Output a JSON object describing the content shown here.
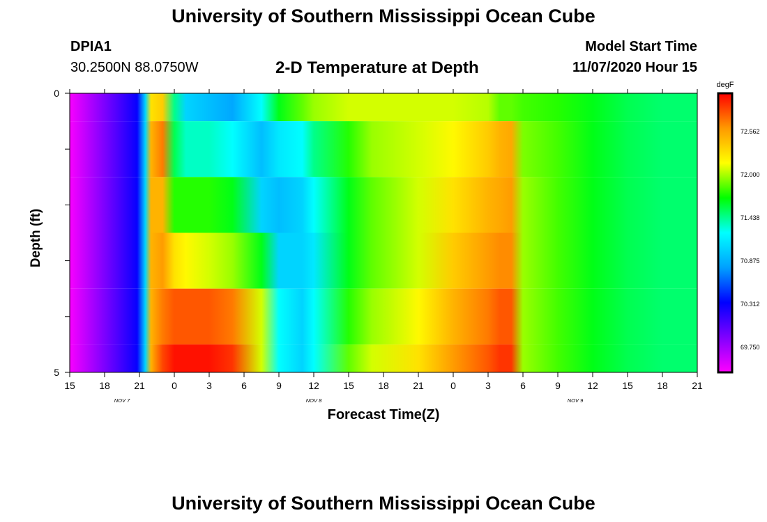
{
  "header": {
    "title_top": "University of Southern Mississippi Ocean Cube",
    "station_id": "DPIA1",
    "station_location": "30.2500N 88.0750W",
    "plot_title": "2-D Temperature at Depth",
    "start_label": "Model Start Time",
    "start_value": "11/07/2020 Hour 15"
  },
  "footer": {
    "title_bottom": "University of Southern Mississippi Ocean Cube"
  },
  "chart_data": {
    "type": "heatmap",
    "xlabel": "Forecast Time(Z)",
    "ylabel": "Depth (ft)",
    "ylim": [
      0,
      5
    ],
    "y_tick_labels": [
      "0",
      "5"
    ],
    "y_levels": [
      0,
      1,
      2,
      3,
      4,
      5
    ],
    "x_range_hours": [
      0,
      54
    ],
    "x_tick_labels": [
      "15",
      "18",
      "21",
      "0",
      "3",
      "6",
      "9",
      "12",
      "15",
      "18",
      "21",
      "0",
      "3",
      "6",
      "9",
      "12",
      "15",
      "18",
      "21"
    ],
    "x_date_labels": [
      {
        "text": "NOV  7",
        "hour": 4.5
      },
      {
        "text": "NOV  8",
        "hour": 21
      },
      {
        "text": "NOV  9",
        "hour": 43.5
      }
    ],
    "colorbar": {
      "unit": "degF",
      "min": 69.45,
      "max": 72.95,
      "labels": [
        "72.562",
        "72.000",
        "71.438",
        "70.875",
        "70.312",
        "69.750"
      ],
      "colors": [
        "#ff00ff",
        "#8000ff",
        "#0000ff",
        "#00a0ff",
        "#00ffff",
        "#00ff00",
        "#ffff00",
        "#ff9900",
        "#ff0000"
      ]
    },
    "hours": [
      0,
      3,
      5.8,
      6.5,
      7,
      8,
      9,
      10,
      12,
      14,
      16.5,
      18,
      20,
      21,
      24,
      26,
      30,
      33,
      36,
      37,
      38,
      39,
      42,
      45,
      48,
      51,
      54
    ],
    "rows": [
      {
        "depth_range": [
          0,
          1
        ],
        "values": [
          69.47,
          69.9,
          70.3,
          71.0,
          72.2,
          72.3,
          71.4,
          71.0,
          70.9,
          70.8,
          71.2,
          71.6,
          71.8,
          71.9,
          72.0,
          72.0,
          72.0,
          72.0,
          71.95,
          71.8,
          71.8,
          71.75,
          71.7,
          71.6,
          71.5,
          71.45,
          71.45
        ]
      },
      {
        "depth_range": [
          1,
          2
        ],
        "values": [
          69.47,
          69.9,
          70.3,
          71.0,
          72.4,
          72.6,
          71.5,
          71.3,
          71.3,
          71.2,
          70.9,
          71.1,
          71.2,
          71.4,
          71.7,
          71.9,
          72.0,
          72.1,
          72.3,
          72.4,
          72.45,
          71.85,
          71.75,
          71.6,
          71.5,
          71.45,
          71.45
        ]
      },
      {
        "depth_range": [
          2,
          3
        ],
        "values": [
          69.47,
          69.9,
          70.3,
          71.0,
          72.4,
          72.4,
          71.7,
          71.7,
          71.7,
          71.6,
          71.0,
          70.9,
          71.0,
          71.2,
          71.6,
          71.8,
          72.0,
          72.2,
          72.4,
          72.45,
          72.5,
          71.9,
          71.75,
          71.6,
          71.5,
          71.45,
          71.45
        ]
      },
      {
        "depth_range": [
          3,
          4
        ],
        "values": [
          69.47,
          69.9,
          70.3,
          71.0,
          72.4,
          72.5,
          72.2,
          72.1,
          72.0,
          71.9,
          71.6,
          71.0,
          71.0,
          71.1,
          71.6,
          71.8,
          72.0,
          72.3,
          72.5,
          72.55,
          72.55,
          71.9,
          71.75,
          71.6,
          71.5,
          71.45,
          71.45
        ]
      },
      {
        "depth_range": [
          4,
          5
        ],
        "values": [
          69.47,
          69.9,
          70.3,
          71.0,
          72.4,
          72.6,
          72.7,
          72.7,
          72.7,
          72.6,
          72.0,
          71.2,
          71.0,
          71.2,
          71.7,
          71.9,
          72.1,
          72.4,
          72.6,
          72.7,
          72.7,
          71.9,
          71.75,
          71.6,
          71.5,
          71.45,
          71.45
        ]
      },
      {
        "depth_range": [
          5,
          6
        ],
        "values": [
          69.47,
          69.9,
          70.3,
          71.0,
          72.4,
          72.75,
          72.9,
          72.9,
          72.9,
          72.8,
          72.0,
          71.2,
          71.0,
          71.2,
          71.8,
          72.0,
          72.2,
          72.5,
          72.7,
          72.8,
          72.8,
          71.9,
          71.75,
          71.6,
          71.5,
          71.45,
          71.45
        ]
      }
    ]
  }
}
